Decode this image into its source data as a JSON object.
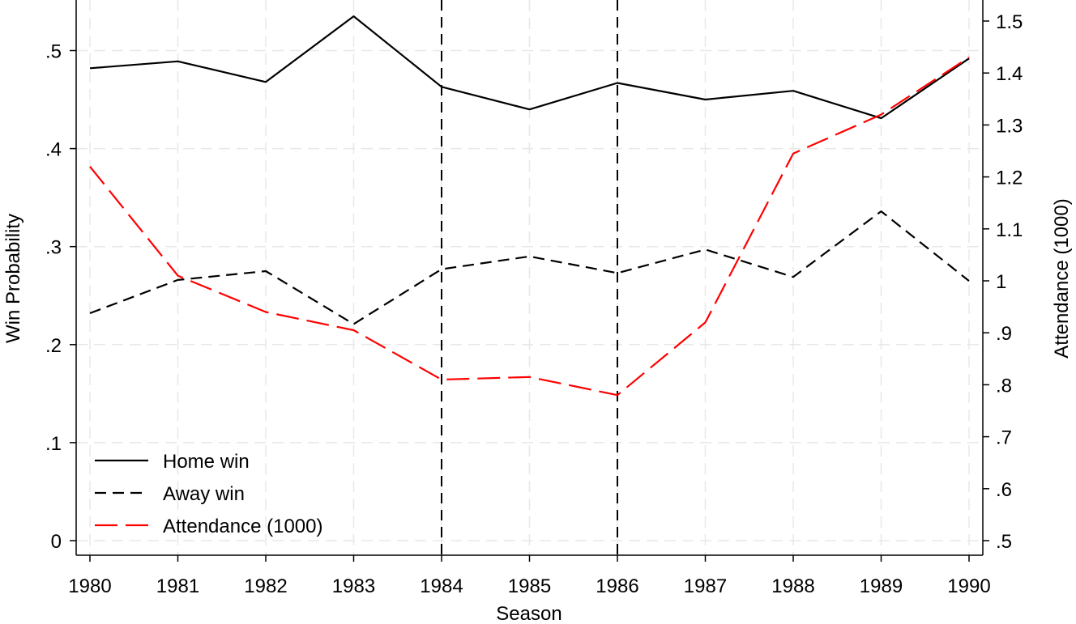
{
  "chart_data": {
    "type": "line",
    "xlabel": "Season",
    "ylabel_left": "Win Probability",
    "ylabel_right": "Attendance (1000)",
    "x": [
      1980,
      1981,
      1982,
      1983,
      1984,
      1985,
      1986,
      1987,
      1988,
      1989,
      1990
    ],
    "x_tick_labels": [
      "1980",
      "1981",
      "1982",
      "1983",
      "1984",
      "1985",
      "1986",
      "1987",
      "1988",
      "1989",
      "1990"
    ],
    "ylim_left": [
      0,
      0.55
    ],
    "ylim_right": [
      0.5,
      1.5
    ],
    "left_ticks": [
      0,
      0.1,
      0.2,
      0.3,
      0.4,
      0.5
    ],
    "left_tick_labels": [
      "0",
      ".1",
      ".2",
      ".3",
      ".4",
      ".5"
    ],
    "right_ticks": [
      0.5,
      0.6,
      0.7,
      0.8,
      0.9,
      1.0,
      1.1,
      1.2,
      1.3,
      1.4,
      1.5
    ],
    "right_tick_labels": [
      ".5",
      ".6",
      ".7",
      ".8",
      ".9",
      "1",
      "1.1",
      "1.2",
      "1.3",
      "1.4",
      "1.5"
    ],
    "vertical_lines": [
      1984,
      1986
    ],
    "grid": true,
    "legend_position": "bottom-left",
    "series": [
      {
        "name": "Home win",
        "axis": "left",
        "style": "solid",
        "color": "#000000",
        "values": [
          0.482,
          0.489,
          0.468,
          0.535,
          0.463,
          0.44,
          0.467,
          0.45,
          0.459,
          0.431,
          0.492
        ]
      },
      {
        "name": "Away win",
        "axis": "left",
        "style": "dash",
        "color": "#000000",
        "values": [
          0.232,
          0.266,
          0.275,
          0.221,
          0.277,
          0.29,
          0.273,
          0.297,
          0.269,
          0.336,
          0.265
        ]
      },
      {
        "name": "Attendance (1000)",
        "axis": "right",
        "style": "longdash",
        "color": "#ff0000",
        "values": [
          1.22,
          1.01,
          0.94,
          0.905,
          0.81,
          0.815,
          0.78,
          0.92,
          1.245,
          1.32,
          1.43
        ]
      }
    ]
  }
}
